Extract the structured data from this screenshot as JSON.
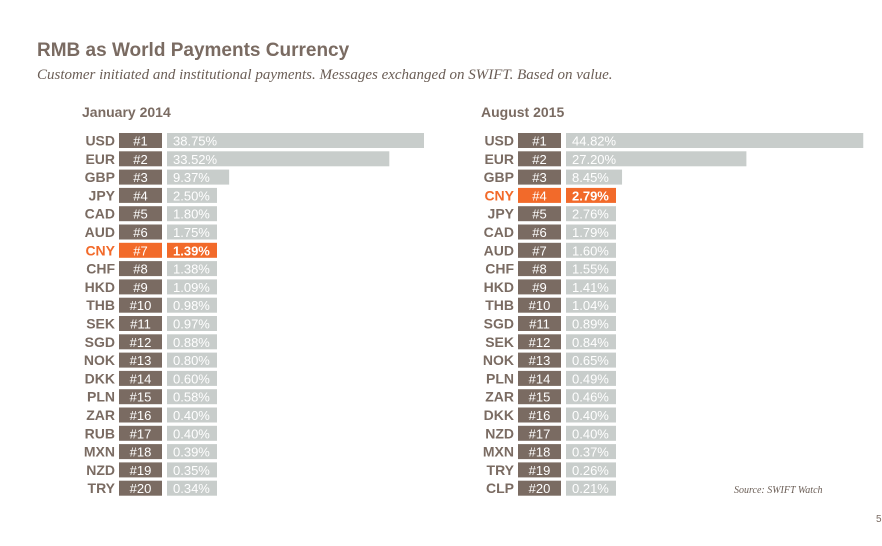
{
  "title": "RMB as World Payments Currency",
  "subtitle": "Customer initiated and institutional payments. Messages exchanged on SWIFT. Based on value.",
  "source": "Source: SWIFT Watch",
  "page_number": "5",
  "colors": {
    "bar": "#c8cdcb",
    "highlight": "#f26a2a",
    "rank_box": "#7a6b62",
    "code_text": "#7a6b62",
    "title_text": "#7a6b62"
  },
  "chart_data": [
    {
      "type": "bar",
      "title": "January 2014",
      "highlight": "CNY",
      "unit": "%",
      "categories": [
        "USD",
        "EUR",
        "GBP",
        "JPY",
        "CAD",
        "AUD",
        "CNY",
        "CHF",
        "HKD",
        "THB",
        "SEK",
        "SGD",
        "NOK",
        "DKK",
        "PLN",
        "ZAR",
        "RUB",
        "MXN",
        "NZD",
        "TRY"
      ],
      "ranks": [
        "#1",
        "#2",
        "#3",
        "#4",
        "#5",
        "#6",
        "#7",
        "#8",
        "#9",
        "#10",
        "#11",
        "#12",
        "#13",
        "#14",
        "#15",
        "#16",
        "#17",
        "#18",
        "#19",
        "#20"
      ],
      "labels": [
        "38.75%",
        "33.52%",
        "9.37%",
        "2.50%",
        "1.80%",
        "1.75%",
        "1.39%",
        "1.38%",
        "1.09%",
        "0.98%",
        "0.97%",
        "0.88%",
        "0.80%",
        "0.60%",
        "0.58%",
        "0.40%",
        "0.40%",
        "0.39%",
        "0.35%",
        "0.34%"
      ],
      "values": [
        38.75,
        33.52,
        9.37,
        2.5,
        1.8,
        1.75,
        1.39,
        1.38,
        1.09,
        0.98,
        0.97,
        0.88,
        0.8,
        0.6,
        0.58,
        0.4,
        0.4,
        0.39,
        0.35,
        0.34
      ]
    },
    {
      "type": "bar",
      "title": "August 2015",
      "highlight": "CNY",
      "unit": "%",
      "categories": [
        "USD",
        "EUR",
        "GBP",
        "CNY",
        "JPY",
        "CAD",
        "AUD",
        "CHF",
        "HKD",
        "THB",
        "SGD",
        "SEK",
        "NOK",
        "PLN",
        "ZAR",
        "DKK",
        "NZD",
        "MXN",
        "TRY",
        "CLP"
      ],
      "ranks": [
        "#1",
        "#2",
        "#3",
        "#4",
        "#5",
        "#6",
        "#7",
        "#8",
        "#9",
        "#10",
        "#11",
        "#12",
        "#13",
        "#14",
        "#15",
        "#16",
        "#17",
        "#18",
        "#19",
        "#20"
      ],
      "labels": [
        "44.82%",
        "27.20%",
        "8.45%",
        "2.79%",
        "2.76%",
        "1.79%",
        "1.60%",
        "1.55%",
        "1.41%",
        "1.04%",
        "0.89%",
        "0.84%",
        "0.65%",
        "0.49%",
        "0.46%",
        "0.40%",
        "0.40%",
        "0.37%",
        "0.26%",
        "0.21%"
      ],
      "values": [
        44.82,
        27.2,
        8.45,
        2.79,
        2.76,
        1.79,
        1.6,
        1.55,
        1.41,
        1.04,
        0.89,
        0.84,
        0.65,
        0.49,
        0.46,
        0.4,
        0.4,
        0.37,
        0.26,
        0.21
      ]
    }
  ]
}
